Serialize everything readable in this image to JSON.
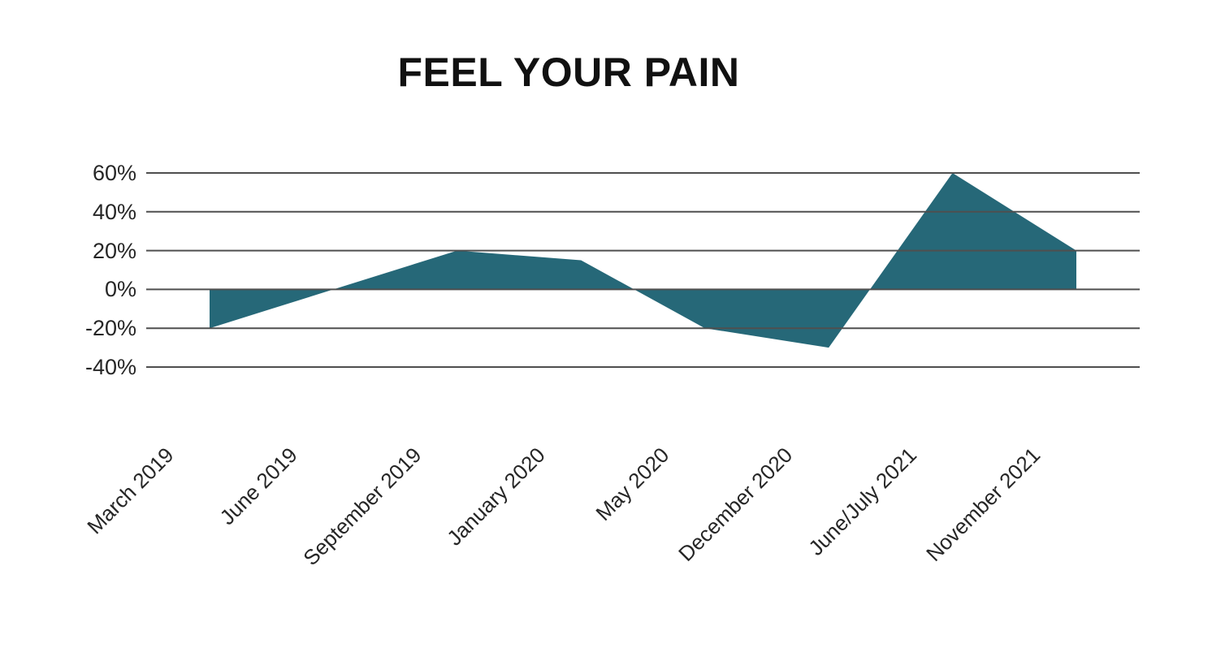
{
  "title": "FEEL YOUR PAIN",
  "chart_data": {
    "type": "area",
    "title": "FEEL YOUR PAIN",
    "categories": [
      "March 2019",
      "June 2019",
      "September 2019",
      "January 2020",
      "May 2020",
      "December 2020",
      "June/July 2021",
      "November 2021"
    ],
    "values": [
      -20,
      0,
      20,
      15,
      -20,
      -30,
      60,
      20
    ],
    "unit": "%",
    "baseline": 0,
    "ylim": [
      -40,
      60
    ],
    "yticks": [
      60,
      40,
      20,
      0,
      -20,
      -40
    ],
    "ytick_labels": [
      "60%",
      "40%",
      "20%",
      "0%",
      "-20%",
      "-40%"
    ],
    "xlabel": "",
    "ylabel": "",
    "grid": true,
    "legend": "none",
    "x_labels_rotation_deg": -45,
    "colors": {
      "area_fill": "#266878",
      "gridline": "#4f4f4f",
      "axis_text": "#262626",
      "title_text": "#111111",
      "background": "#ffffff"
    }
  }
}
